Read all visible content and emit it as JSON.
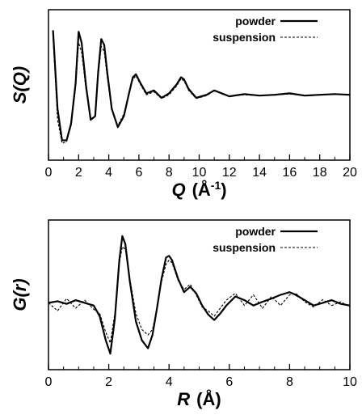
{
  "chart_data": [
    {
      "type": "line",
      "ylabel": "S(Q)",
      "xlabel": "Q (Å-1)",
      "xlabel_var": "Q",
      "xlabel_unit": "(Å",
      "xlabel_sup": "-1",
      "xlabel_close": ")",
      "xlim": [
        0,
        20
      ],
      "xticks": [
        "0",
        "2",
        "4",
        "6",
        "8",
        "10",
        "12",
        "14",
        "16",
        "18",
        "20"
      ],
      "legend_position": "top-right",
      "grid": false,
      "series": [
        {
          "name": "powder",
          "style": "solid",
          "x": [
            0.3,
            0.6,
            0.9,
            1.2,
            1.5,
            1.8,
            2.0,
            2.2,
            2.5,
            2.8,
            3.1,
            3.3,
            3.5,
            3.7,
            3.9,
            4.2,
            4.6,
            5.0,
            5.3,
            5.6,
            5.8,
            6.1,
            6.5,
            7.0,
            7.5,
            8.0,
            8.5,
            8.8,
            9.0,
            9.3,
            9.8,
            10.5,
            11.0,
            11.5,
            12.0,
            13.0,
            14.0,
            15.0,
            16.0,
            17.0,
            18.0,
            19.0,
            20.0
          ],
          "y": [
            1.62,
            0.55,
            0.12,
            0.12,
            0.35,
            0.9,
            1.6,
            1.45,
            0.85,
            0.4,
            0.45,
            1.05,
            1.5,
            1.42,
            1.05,
            0.55,
            0.3,
            0.45,
            0.72,
            0.98,
            1.02,
            0.9,
            0.76,
            0.8,
            0.7,
            0.76,
            0.88,
            0.98,
            0.95,
            0.82,
            0.7,
            0.74,
            0.8,
            0.76,
            0.72,
            0.75,
            0.73,
            0.74,
            0.76,
            0.73,
            0.74,
            0.75,
            0.74
          ]
        },
        {
          "name": "suspension",
          "style": "dashed",
          "x": [
            0.3,
            0.6,
            0.9,
            1.2,
            1.5,
            1.8,
            2.0,
            2.2,
            2.5,
            2.8,
            3.1,
            3.3,
            3.5,
            3.7,
            3.9,
            4.2,
            4.6,
            5.0,
            5.3,
            5.6,
            5.8,
            6.1,
            6.5,
            7.0,
            7.5,
            8.0,
            8.5,
            8.8,
            9.0,
            9.3,
            9.8,
            10.5,
            11.0,
            11.5,
            12.0,
            13.0,
            14.0,
            15.0,
            16.0,
            17.0,
            18.0,
            19.0,
            20.0
          ],
          "y": [
            1.55,
            0.4,
            0.08,
            0.1,
            0.32,
            0.85,
            1.45,
            1.32,
            0.8,
            0.42,
            0.44,
            1.0,
            1.4,
            1.33,
            0.98,
            0.55,
            0.32,
            0.48,
            0.72,
            0.95,
            1.0,
            0.88,
            0.74,
            0.78,
            0.69,
            0.74,
            0.86,
            0.96,
            0.93,
            0.8,
            0.69,
            0.73,
            0.8,
            0.75,
            0.72,
            0.74,
            0.73,
            0.74,
            0.75,
            0.73,
            0.74,
            0.75,
            0.74
          ]
        }
      ]
    },
    {
      "type": "line",
      "ylabel": "G(r)",
      "xlabel": "R (Å)",
      "xlabel_var": "R",
      "xlabel_unit": "(Å)",
      "xlim": [
        0,
        10
      ],
      "xticks": [
        "0",
        "2",
        "4",
        "6",
        "8",
        "10"
      ],
      "legend_position": "top-right",
      "grid": false,
      "series": [
        {
          "name": "powder",
          "style": "solid",
          "x": [
            0.0,
            0.3,
            0.6,
            0.9,
            1.2,
            1.5,
            1.7,
            1.9,
            2.05,
            2.2,
            2.35,
            2.45,
            2.55,
            2.7,
            2.9,
            3.1,
            3.3,
            3.45,
            3.6,
            3.75,
            3.9,
            4.0,
            4.1,
            4.3,
            4.5,
            4.7,
            4.9,
            5.1,
            5.3,
            5.5,
            5.7,
            5.9,
            6.2,
            6.5,
            6.8,
            7.1,
            7.4,
            7.7,
            8.0,
            8.2,
            8.5,
            8.8,
            9.1,
            9.4,
            9.7,
            10.0
          ],
          "y": [
            0.0,
            0.03,
            -0.02,
            0.05,
            0.0,
            -0.05,
            -0.25,
            -0.7,
            -0.95,
            -0.3,
            0.8,
            1.25,
            1.1,
            0.4,
            -0.35,
            -0.7,
            -0.85,
            -0.6,
            -0.1,
            0.45,
            0.85,
            0.88,
            0.8,
            0.45,
            0.2,
            0.3,
            0.18,
            -0.05,
            -0.22,
            -0.32,
            -0.2,
            -0.05,
            0.12,
            0.05,
            -0.05,
            0.02,
            0.08,
            0.15,
            0.2,
            0.15,
            0.05,
            -0.05,
            0.0,
            0.05,
            -0.02,
            -0.05
          ]
        },
        {
          "name": "suspension",
          "style": "dashed",
          "x": [
            0.0,
            0.3,
            0.6,
            0.9,
            1.2,
            1.5,
            1.7,
            1.9,
            2.05,
            2.2,
            2.35,
            2.45,
            2.55,
            2.7,
            2.9,
            3.1,
            3.3,
            3.45,
            3.6,
            3.75,
            3.9,
            4.0,
            4.1,
            4.3,
            4.5,
            4.7,
            4.9,
            5.1,
            5.3,
            5.5,
            5.7,
            5.9,
            6.2,
            6.5,
            6.8,
            7.1,
            7.4,
            7.7,
            8.0,
            8.2,
            8.5,
            8.8,
            9.1,
            9.4,
            9.7,
            10.0
          ],
          "y": [
            0.0,
            -0.15,
            0.08,
            -0.1,
            0.05,
            -0.12,
            -0.2,
            -0.55,
            -0.75,
            -0.2,
            0.75,
            1.05,
            1.0,
            0.45,
            -0.2,
            -0.5,
            -0.6,
            -0.5,
            -0.1,
            0.4,
            0.72,
            0.8,
            0.75,
            0.42,
            0.25,
            0.35,
            0.15,
            -0.08,
            -0.15,
            -0.25,
            -0.1,
            0.05,
            0.18,
            -0.05,
            0.15,
            -0.1,
            0.12,
            -0.05,
            0.15,
            0.18,
            0.02,
            -0.08,
            0.06,
            -0.05,
            0.02,
            -0.08
          ]
        }
      ]
    }
  ]
}
